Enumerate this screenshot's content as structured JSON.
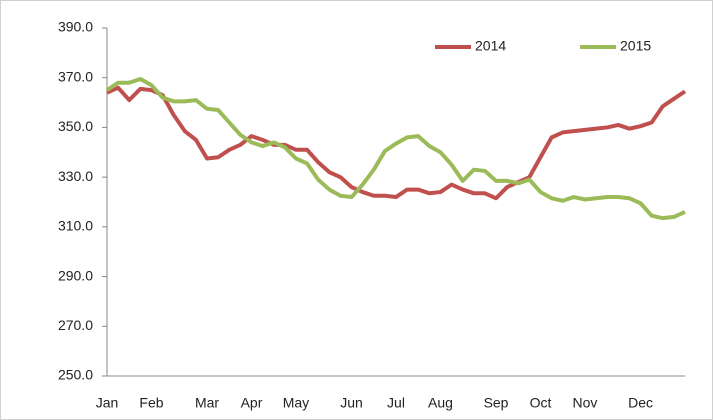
{
  "chart_data": {
    "type": "line",
    "categories": [
      "Jan",
      null,
      null,
      null,
      "Feb",
      null,
      null,
      null,
      null,
      "Mar",
      null,
      null,
      null,
      "Apr",
      null,
      null,
      null,
      "May",
      null,
      null,
      null,
      null,
      "Jun",
      null,
      null,
      null,
      "Jul",
      null,
      null,
      null,
      "Aug",
      null,
      null,
      null,
      null,
      "Sep",
      null,
      null,
      null,
      "Oct",
      null,
      null,
      null,
      "Nov",
      null,
      null,
      null,
      null,
      "Dec",
      null,
      null,
      null,
      null
    ],
    "series": [
      {
        "name": "2014",
        "color": "#c0504d",
        "values": [
          364,
          366,
          361,
          365.5,
          365,
          363,
          355,
          348.5,
          345,
          337.5,
          338,
          341,
          343,
          346.5,
          345,
          343,
          343,
          341,
          341,
          336,
          332,
          330,
          326,
          324,
          322.5,
          322.5,
          322,
          325,
          325,
          323.5,
          324,
          327,
          325,
          323.5,
          323.5,
          321.5,
          326,
          328,
          330,
          338,
          346,
          348,
          348.5,
          349,
          349.5,
          350,
          351,
          349.5,
          350.5,
          352,
          358.5,
          361.5,
          364.5
        ]
      },
      {
        "name": "2015",
        "color": "#9bbb59",
        "values": [
          365,
          368,
          368,
          369.5,
          367,
          362,
          360.5,
          360.5,
          361,
          357.5,
          357,
          352,
          347,
          344,
          342.5,
          344,
          342,
          337.5,
          335.5,
          329,
          325,
          322.5,
          322,
          327,
          333,
          340.5,
          343.5,
          346,
          346.5,
          342.5,
          340,
          335,
          328.5,
          333,
          332.5,
          328.5,
          328.5,
          327.5,
          329,
          324,
          321.5,
          320.5,
          322,
          321,
          321.5,
          322,
          322,
          321.5,
          319.5,
          314.5,
          313.5,
          314,
          316
        ]
      }
    ],
    "ylim": [
      250,
      390
    ],
    "yticks": [
      {
        "value": 250,
        "label": "250.0"
      },
      {
        "value": 270,
        "label": "270.0"
      },
      {
        "value": 290,
        "label": "290.0"
      },
      {
        "value": 310,
        "label": "310.0"
      },
      {
        "value": 330,
        "label": "330.0"
      },
      {
        "value": 350,
        "label": "350.0"
      },
      {
        "value": 370,
        "label": "370.0"
      },
      {
        "value": 390,
        "label": "390.0"
      }
    ],
    "grid": false,
    "legend": "top-right"
  }
}
